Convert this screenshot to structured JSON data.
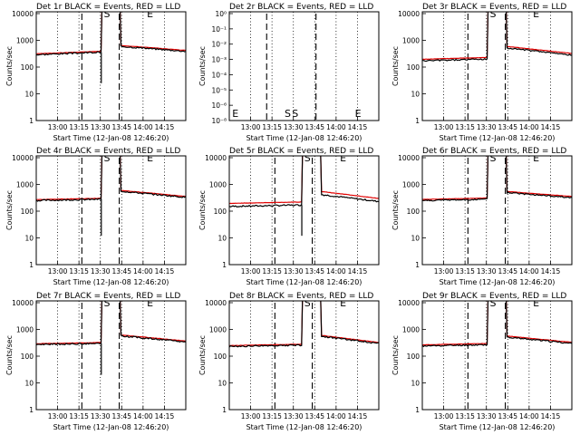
{
  "chart_data": [
    {
      "title": "Det 1r BLACK = Events, RED = LLD",
      "ylabel": "Counts/sec",
      "xlabel": "Start Time (12-Jan-08 12:46:20)",
      "type": "line",
      "ylog": true,
      "yticks": [
        "1",
        "10",
        "100",
        "1000",
        "10000"
      ],
      "xticks": [
        "13:00",
        "13:15",
        "13:30",
        "13:45",
        "14:00",
        "14:15"
      ],
      "letters": [
        "S",
        "E"
      ],
      "mode": "flare",
      "base": [
        290,
        360
      ],
      "tail": [
        600,
        390
      ],
      "gap": 1.08,
      "dip": 25,
      "peak_x": 0.47
    },
    {
      "title": "Det 2r BLACK = Events, RED = LLD",
      "ylabel": "Counts/sec",
      "xlabel": "Start Time (12-Jan-08 12:46:20)",
      "type": "line",
      "ylog": true,
      "yticks": [
        "10⁻⁸",
        "10⁻⁶",
        "10⁻⁵",
        "10⁻⁴",
        "10⁻³",
        "10⁻²",
        "10⁻¹",
        "10⁰"
      ],
      "xticks": [
        "13:00",
        "13:15",
        "13:30",
        "13:45",
        "14:00",
        "14:15"
      ],
      "letters": [
        "E",
        "S",
        "S",
        "E"
      ],
      "mode": "empty"
    },
    {
      "title": "Det 3r BLACK = Events, RED = LLD",
      "ylabel": "Counts/sec",
      "xlabel": "Start Time (12-Jan-08 12:46:20)",
      "type": "line",
      "ylog": true,
      "yticks": [
        "1",
        "10",
        "100",
        "1000",
        "10000"
      ],
      "xticks": [
        "13:00",
        "13:15",
        "13:30",
        "13:45",
        "14:00",
        "14:15"
      ],
      "letters": [
        "S",
        "E"
      ],
      "mode": "flare",
      "base": [
        170,
        200
      ],
      "tail": [
        520,
        280
      ],
      "gap": 1.15,
      "dip": null,
      "peak_x": 0.47
    },
    {
      "title": "Det 4r BLACK = Events, RED = LLD",
      "ylabel": "Counts/sec",
      "xlabel": "Start Time (12-Jan-08 12:46:20)",
      "type": "line",
      "ylog": true,
      "yticks": [
        "1",
        "10",
        "100",
        "1000",
        "10000"
      ],
      "xticks": [
        "13:00",
        "13:15",
        "13:30",
        "13:45",
        "14:00",
        "14:15"
      ],
      "letters": [
        "S",
        "E"
      ],
      "mode": "flare",
      "base": [
        250,
        280
      ],
      "tail": [
        560,
        330
      ],
      "gap": 1.08,
      "dip": 12,
      "peak_x": 0.47
    },
    {
      "title": "Det 5r BLACK = Events, RED = LLD",
      "ylabel": "Counts/sec",
      "xlabel": "Start Time (12-Jan-08 12:46:20)",
      "type": "line",
      "ylog": true,
      "yticks": [
        "1",
        "10",
        "100",
        "1000",
        "10000"
      ],
      "xticks": [
        "13:00",
        "13:15",
        "13:30",
        "13:45",
        "14:00",
        "14:15"
      ],
      "letters": [
        "S",
        "E"
      ],
      "mode": "flare",
      "base": [
        150,
        170
      ],
      "tail": [
        420,
        230
      ],
      "gap": 1.3,
      "dip": 12,
      "peak_x": 0.52
    },
    {
      "title": "Det 6r BLACK = Events, RED = LLD",
      "ylabel": "Counts/sec",
      "xlabel": "Start Time (12-Jan-08 12:46:20)",
      "type": "line",
      "ylog": true,
      "yticks": [
        "1",
        "10",
        "100",
        "1000",
        "10000"
      ],
      "xticks": [
        "13:00",
        "13:15",
        "13:30",
        "13:45",
        "14:00",
        "14:15"
      ],
      "letters": [
        "S",
        "E"
      ],
      "mode": "flare",
      "base": [
        250,
        280
      ],
      "tail": [
        500,
        320
      ],
      "gap": 1.1,
      "dip": null,
      "peak_x": 0.47
    },
    {
      "title": "Det 7r BLACK = Events, RED = LLD",
      "ylabel": "Counts/sec",
      "xlabel": "Start Time (12-Jan-08 12:46:20)",
      "type": "line",
      "ylog": true,
      "yticks": [
        "1",
        "10",
        "100",
        "1000",
        "10000"
      ],
      "xticks": [
        "13:00",
        "13:15",
        "13:30",
        "13:45",
        "14:00",
        "14:15"
      ],
      "letters": [
        "S",
        "E"
      ],
      "mode": "flare",
      "base": [
        270,
        300
      ],
      "tail": [
        580,
        340
      ],
      "gap": 1.08,
      "dip": 20,
      "peak_x": 0.47
    },
    {
      "title": "Det 8r BLACK = Events, RED = LLD",
      "ylabel": "Counts/sec",
      "xlabel": "Start Time (12-Jan-08 12:46:20)",
      "type": "line",
      "ylog": true,
      "yticks": [
        "1",
        "10",
        "100",
        "1000",
        "10000"
      ],
      "xticks": [
        "13:00",
        "13:15",
        "13:30",
        "13:45",
        "14:00",
        "14:15"
      ],
      "letters": [
        "S",
        "E"
      ],
      "mode": "flare",
      "base": [
        230,
        260
      ],
      "tail": [
        560,
        300
      ],
      "gap": 1.08,
      "dip": null,
      "peak_x": 0.52
    },
    {
      "title": "Det 9r BLACK = Events, RED = LLD",
      "ylabel": "Counts/sec",
      "xlabel": "Start Time (12-Jan-08 12:46:20)",
      "type": "line",
      "ylog": true,
      "yticks": [
        "1",
        "10",
        "100",
        "1000",
        "10000"
      ],
      "xticks": [
        "13:00",
        "13:15",
        "13:30",
        "13:45",
        "14:00",
        "14:15"
      ],
      "letters": [
        "S",
        "E"
      ],
      "mode": "flare",
      "base": [
        240,
        270
      ],
      "tail": [
        520,
        300
      ],
      "gap": 1.1,
      "dip": null,
      "peak_x": 0.47
    }
  ],
  "colors": {
    "events": "#000000",
    "lld": "#e00000",
    "background": "#ffffff"
  }
}
